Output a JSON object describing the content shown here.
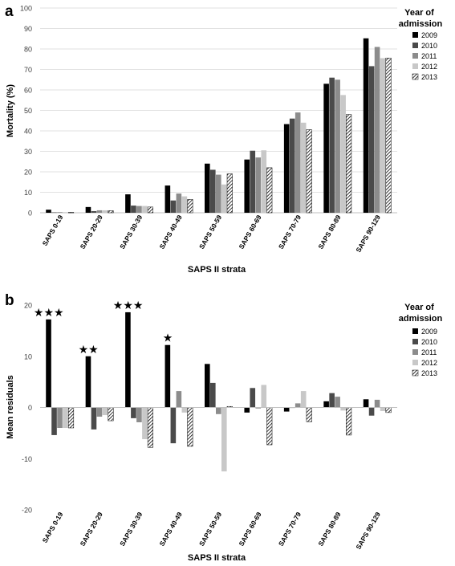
{
  "chart_data": [
    {
      "panel_label": "a",
      "type": "bar",
      "title": "",
      "xlabel": "SAPS II strata",
      "ylabel": "Mortality (%)",
      "ylim": [
        0,
        100
      ],
      "yticks": [
        0,
        10,
        20,
        30,
        40,
        50,
        60,
        70,
        80,
        90,
        100
      ],
      "grid": "horizontal",
      "legend_title": "Year of admission",
      "legend_position": "right",
      "categories": [
        "SAPS 0-19",
        "SAPS 20-29",
        "SAPS 30-39",
        "SAPS 40-49",
        "SAPS 50-59",
        "SAPS 60-69",
        "SAPS 70-79",
        "SAPS 80-89",
        "SAPS 90-129"
      ],
      "series": [
        {
          "name": "2009",
          "color": "#000000",
          "pattern": "solid",
          "values": [
            1.5,
            2.8,
            9.0,
            13.3,
            24.0,
            26.0,
            43.3,
            63.0,
            85.2
          ]
        },
        {
          "name": "2010",
          "color": "#4a4a4a",
          "pattern": "solid",
          "values": [
            0.2,
            0.8,
            3.5,
            6.0,
            21.0,
            30.3,
            46.0,
            66.0,
            71.6
          ]
        },
        {
          "name": "2011",
          "color": "#8c8c8c",
          "pattern": "solid",
          "values": [
            0.3,
            1.2,
            3.3,
            9.4,
            18.6,
            27.0,
            49.0,
            65.0,
            81.0
          ]
        },
        {
          "name": "2012",
          "color": "#c8c8c8",
          "pattern": "solid",
          "values": [
            0.3,
            1.2,
            3.3,
            8.0,
            13.8,
            30.5,
            44.0,
            57.5,
            75.5
          ]
        },
        {
          "name": "2013",
          "color": "#ffffff",
          "pattern": "hatch",
          "values": [
            0.2,
            1.0,
            2.8,
            6.5,
            19.0,
            22.0,
            40.6,
            48.0,
            75.6
          ]
        }
      ]
    },
    {
      "panel_label": "b",
      "type": "bar",
      "title": "",
      "xlabel": "SAPS II strata",
      "ylabel": "Mean residuals",
      "ylim": [
        -20,
        20
      ],
      "yticks": [
        -20,
        -10,
        0,
        10,
        20
      ],
      "grid": "none",
      "legend_title": "Year of admission",
      "legend_position": "right",
      "categories": [
        "SAPS 0-19",
        "SAPS 20-29",
        "SAPS 30-39",
        "SAPS 40-49",
        "SAPS 50-59",
        "SAPS 60-69",
        "SAPS 70-79",
        "SAPS 80-89",
        "SAPS 90-129"
      ],
      "annotations": [
        {
          "category": "SAPS 0-19",
          "text": "★★★"
        },
        {
          "category": "SAPS 20-29",
          "text": "★★"
        },
        {
          "category": "SAPS 30-39",
          "text": "★★★"
        },
        {
          "category": "SAPS 40-49",
          "text": "★"
        }
      ],
      "series": [
        {
          "name": "2009",
          "color": "#000000",
          "pattern": "solid",
          "values": [
            17.2,
            10.0,
            18.6,
            12.2,
            8.5,
            -1.0,
            -0.8,
            1.2,
            1.6
          ]
        },
        {
          "name": "2010",
          "color": "#4a4a4a",
          "pattern": "solid",
          "values": [
            -5.4,
            -4.3,
            -2.1,
            -7.0,
            4.8,
            3.8,
            0.0,
            2.8,
            -1.6
          ]
        },
        {
          "name": "2011",
          "color": "#8c8c8c",
          "pattern": "solid",
          "values": [
            -4.0,
            -1.8,
            -2.9,
            3.2,
            -1.3,
            -0.2,
            0.8,
            2.1,
            1.5
          ]
        },
        {
          "name": "2012",
          "color": "#c8c8c8",
          "pattern": "solid",
          "values": [
            -4.0,
            -1.5,
            -6.2,
            -1.0,
            -12.5,
            4.4,
            3.2,
            -0.6,
            -0.7
          ]
        },
        {
          "name": "2013",
          "color": "#ffffff",
          "pattern": "hatch",
          "values": [
            -4.0,
            -2.6,
            -7.8,
            -7.6,
            0.2,
            -7.3,
            -2.8,
            -5.4,
            -1.0
          ]
        }
      ]
    }
  ]
}
